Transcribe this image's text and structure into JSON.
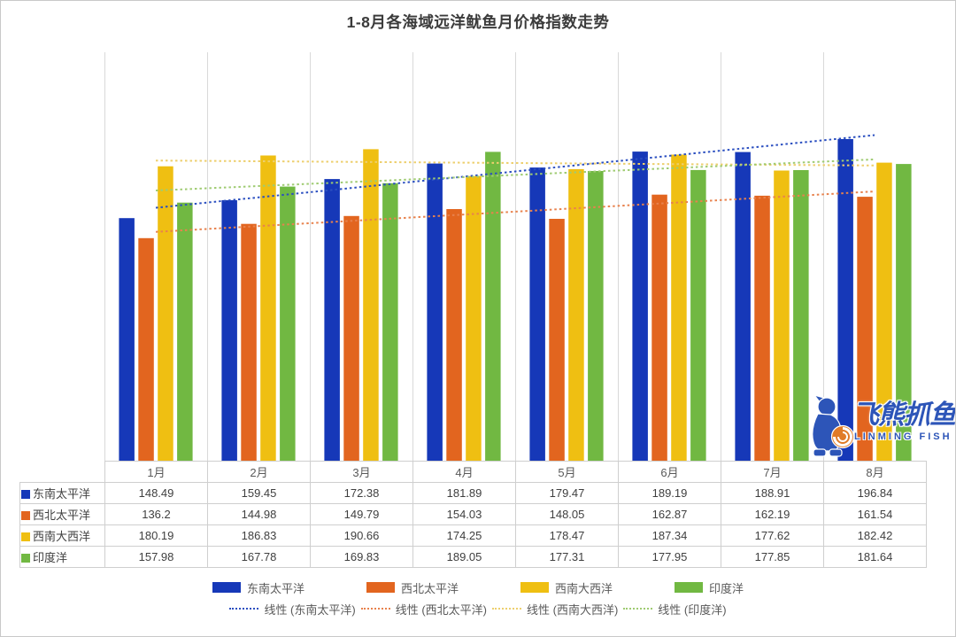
{
  "title": "1-8月各海域远洋鱿鱼月价格指数走势",
  "chart_data": {
    "type": "bar",
    "categories": [
      "1月",
      "2月",
      "3月",
      "4月",
      "5月",
      "6月",
      "7月",
      "8月"
    ],
    "series": [
      {
        "name": "东南太平洋",
        "color": "#1638b8",
        "values": [
          148.49,
          159.45,
          172.38,
          181.89,
          179.47,
          189.19,
          188.91,
          196.84
        ]
      },
      {
        "name": "西北太平洋",
        "color": "#e2651f",
        "values": [
          136.2,
          144.98,
          149.79,
          154.03,
          148.05,
          162.87,
          162.19,
          161.54
        ]
      },
      {
        "name": "西南大西洋",
        "color": "#efbf12",
        "values": [
          180.19,
          186.83,
          190.66,
          174.25,
          178.47,
          187.34,
          177.62,
          182.42
        ]
      },
      {
        "name": "印度洋",
        "color": "#71b842",
        "values": [
          157.98,
          167.78,
          169.83,
          189.05,
          177.31,
          177.95,
          177.85,
          181.64
        ]
      }
    ],
    "trendlines": [
      {
        "label": "线性 (东南太平洋)",
        "series_index": 0,
        "color": "#2b4fc0",
        "style": "dotted"
      },
      {
        "label": "线性 (西北太平洋)",
        "series_index": 1,
        "color": "#e8824d",
        "style": "dotted"
      },
      {
        "label": "线性 (西南大西洋)",
        "series_index": 2,
        "color": "#edcf6e",
        "style": "dotted"
      },
      {
        "label": "线性 (印度洋)",
        "series_index": 3,
        "color": "#9fcb72",
        "style": "dotted"
      }
    ],
    "ylim": [
      0,
      250
    ],
    "grid": "vertical-only",
    "grid_color": "#d9d9d9",
    "legend_position": "bottom",
    "show_data_table": true,
    "table_border_color": "#cfcfcf"
  },
  "watermark": {
    "chinese": "飞熊抓鱼",
    "english": "LINMING FISH",
    "blue": "#2d55b8",
    "orange": "#e07b28"
  }
}
